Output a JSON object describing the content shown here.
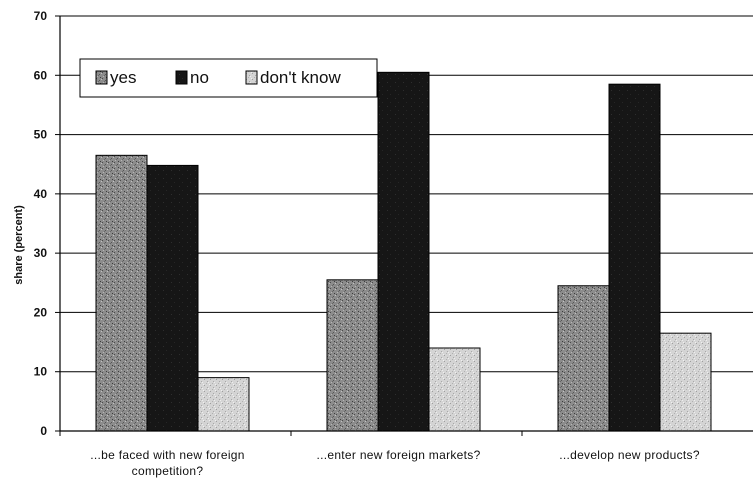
{
  "chart_data": {
    "type": "bar",
    "categories": [
      [
        "...be faced with new foreign",
        "competition?"
      ],
      [
        "...enter new foreign markets?"
      ],
      [
        "...develop new products?"
      ]
    ],
    "series": [
      {
        "name": "yes",
        "values": [
          46.5,
          25.5,
          24.5
        ],
        "color": "#8a8a8a",
        "pattern": "speckled-medium"
      },
      {
        "name": "no",
        "values": [
          44.8,
          60.5,
          58.5
        ],
        "color": "#161616",
        "pattern": "dark"
      },
      {
        "name": "don't know",
        "values": [
          9,
          14,
          16.5
        ],
        "color": "#d2d2d2",
        "pattern": "speckled-light"
      }
    ],
    "ylabel": "share (percent)",
    "xlabel": "",
    "title": "",
    "ylim": [
      0,
      70
    ],
    "yticks": [
      0,
      10,
      20,
      30,
      40,
      50,
      60,
      70
    ],
    "grid": "horizontal",
    "legend_position": "top-left"
  }
}
